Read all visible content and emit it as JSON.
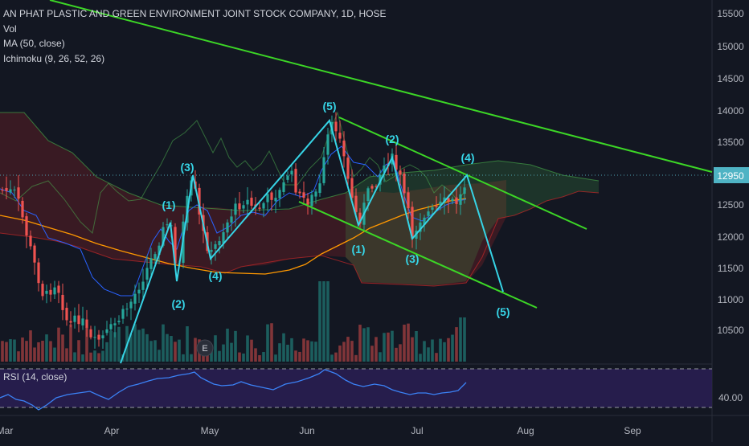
{
  "legend": {
    "title": "AN PHAT PLASTIC AND GREEN ENVIRONMENT JOINT STOCK COMPANY, 1D, HOSE",
    "vol": "Vol",
    "ma": "MA (50, close)",
    "ichimoku": "Ichimoku (9, 26, 52, 26)"
  },
  "rsi_panel": {
    "label": "RSI (14, close)",
    "level_tick": "40.00"
  },
  "price_axis": {
    "ticks": [
      "15500",
      "15000",
      "14500",
      "14000",
      "13500",
      "13000",
      "12500",
      "12000",
      "11500",
      "11000",
      "10500"
    ],
    "last_price": "12950"
  },
  "time_axis": {
    "ticks": [
      "Mar",
      "Apr",
      "May",
      "Jun",
      "Jul",
      "Aug",
      "Sep"
    ]
  },
  "earnings_marker": "E",
  "wave_labels": [
    "(1)",
    "(2)",
    "(3)",
    "(4)",
    "(5)",
    "(1)",
    "(2)",
    "(3)",
    "(4)",
    "(5)"
  ],
  "colors": {
    "background": "#131722",
    "up_candle": "#26a69a",
    "down_candle": "#ef5350",
    "wave": "#36d4e6",
    "trendline": "#3cd626",
    "ma": "#ff9800",
    "tenkan": "#2962ff",
    "cloud_up": "#43a047",
    "cloud_down": "#c62828",
    "rsi": "#3b82f6",
    "rsi_band": "#2a1f54"
  },
  "chart_data": {
    "type": "candlestick",
    "symbol": "AN PHAT PLASTIC AND GREEN ENVIRONMENT JOINT STOCK COMPANY",
    "interval": "1D",
    "exchange": "HOSE",
    "ylim": [
      10100,
      15700
    ],
    "last_price": 12950,
    "indicators": [
      "Vol",
      "MA (50, close)",
      "Ichimoku (9, 26, 52, 26)",
      "RSI (14, close)"
    ],
    "grid": false,
    "waves": [
      {
        "label": "(1)",
        "date": "2020-04-20",
        "price": 12400
      },
      {
        "label": "(2)",
        "date": "2020-04-23",
        "price": 11200
      },
      {
        "label": "(3)",
        "date": "2020-04-28",
        "price": 13000
      },
      {
        "label": "(4)",
        "date": "2020-05-05",
        "price": 11650
      },
      {
        "label": "(5)",
        "date": "2020-06-09",
        "price": 13780
      },
      {
        "label": "(1)",
        "date": "2020-06-16",
        "price": 12150
      },
      {
        "label": "(2)",
        "date": "2020-06-24",
        "price": 13250
      },
      {
        "label": "(3)",
        "date": "2020-06-30",
        "price": 11950
      },
      {
        "label": "(4)",
        "date": "2020-07-16",
        "price": 12950
      },
      {
        "label": "(5)",
        "date": "2020-07-25",
        "price": 11100
      }
    ]
  }
}
